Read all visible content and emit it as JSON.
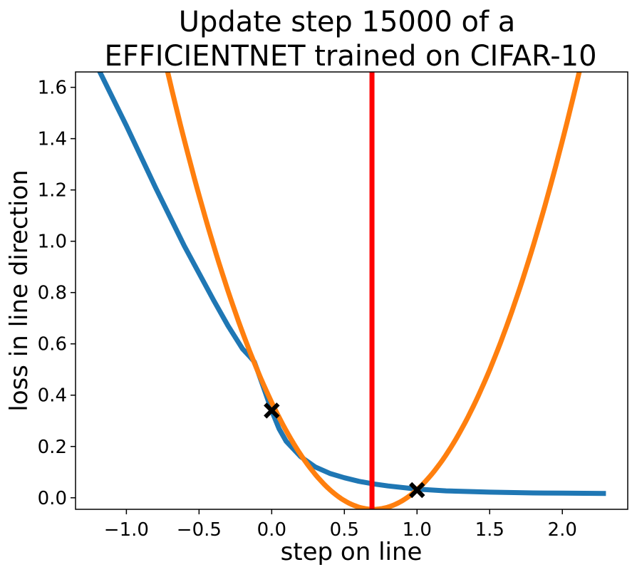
{
  "chart_data": {
    "type": "line",
    "title_lines": [
      "Update step 15000 of a",
      "EFFICIENTNET trained on CIFAR-10"
    ],
    "xlabel": "step on line",
    "ylabel": "loss in line direction",
    "xlim": [
      -1.35,
      2.45
    ],
    "ylim": [
      -0.045,
      1.66
    ],
    "xticks": [
      -1.0,
      -0.5,
      0.0,
      0.5,
      1.0,
      1.5,
      2.0
    ],
    "xtick_labels": [
      "−1.0",
      "−0.5",
      "0.0",
      "0.5",
      "1.0",
      "1.5",
      "2.0"
    ],
    "yticks": [
      0.0,
      0.2,
      0.4,
      0.6,
      0.8,
      1.0,
      1.2,
      1.4,
      1.6
    ],
    "ytick_labels": [
      "0.0",
      "0.2",
      "0.4",
      "0.6",
      "0.8",
      "1.0",
      "1.2",
      "1.4",
      "1.6"
    ],
    "grid": false,
    "series": [
      {
        "color": "#1f77b4",
        "x": [
          -1.35,
          -1.2,
          -1.0,
          -0.8,
          -0.6,
          -0.4,
          -0.3,
          -0.2,
          -0.15,
          -0.12,
          -0.1,
          -0.05,
          0.0,
          0.05,
          0.1,
          0.2,
          0.3,
          0.4,
          0.5,
          0.6,
          0.7,
          0.8,
          1.0,
          1.2,
          1.5,
          1.8,
          2.0,
          2.3
        ],
        "y": [
          1.85,
          1.68,
          1.45,
          1.21,
          0.98,
          0.77,
          0.67,
          0.58,
          0.55,
          0.53,
          0.5,
          0.42,
          0.34,
          0.27,
          0.22,
          0.16,
          0.12,
          0.095,
          0.078,
          0.064,
          0.054,
          0.046,
          0.034,
          0.027,
          0.022,
          0.019,
          0.018,
          0.017
        ]
      },
      {
        "color": "#ff7f0e",
        "parabola": {
          "vertex_x": 0.7,
          "vertex_y": -0.045,
          "coefficient": 0.85
        },
        "x_range": [
          -1.35,
          2.45
        ]
      }
    ],
    "vertical_line": {
      "x": 0.69,
      "color": "#ff0000"
    },
    "markers": {
      "x": [
        0.0,
        1.0
      ],
      "y": [
        0.34,
        0.03
      ],
      "symbol": "X",
      "color": "#000000"
    }
  }
}
